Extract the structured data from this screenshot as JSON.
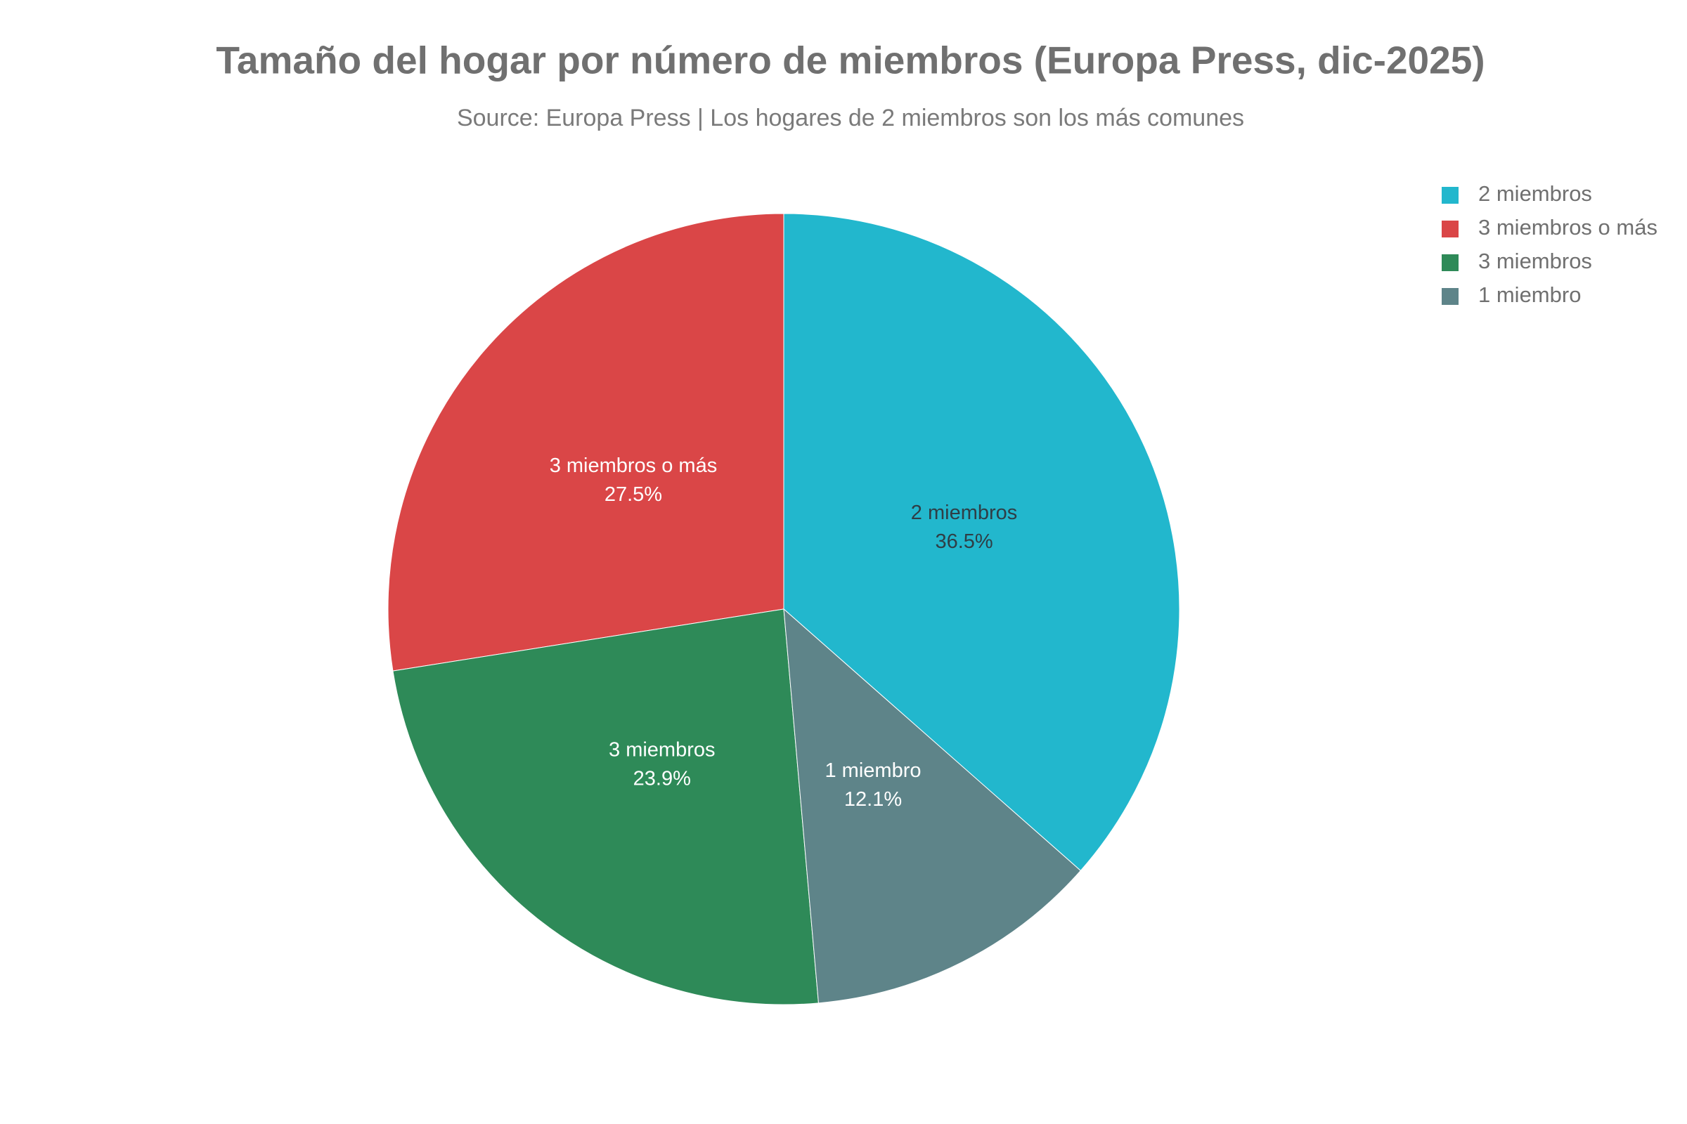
{
  "chart_data": {
    "type": "pie",
    "title": "Tamaño del hogar por número de miembros (Europa Press, dic-2025)",
    "subtitle": "Source: Europa Press | Los hogares de 2 miembros son los más comunes",
    "categories": [
      "2 miembros",
      "3 miembros o más",
      "3 miembros",
      "1 miembro"
    ],
    "values": [
      36.5,
      27.5,
      23.9,
      12.1
    ],
    "value_labels": [
      "36.5%",
      "27.5%",
      "23.9%",
      "12.1%"
    ],
    "colors": [
      "#22b7cd",
      "#da4647",
      "#2e8a58",
      "#5e8489"
    ],
    "legend": "top-right"
  }
}
